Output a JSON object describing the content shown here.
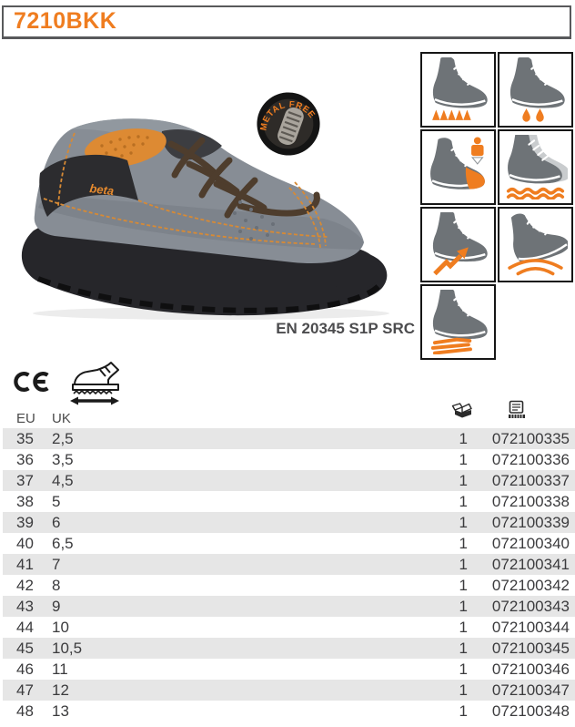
{
  "colors": {
    "accent": "#EF7D20",
    "header_border": "#58595B",
    "boot_gray": "#6E7377",
    "ghost_gray": "#C9CCCE",
    "row_alt": "#E6E6E6",
    "table_text": "#3B3B3D",
    "standard_text": "#4C4C4E"
  },
  "header": {
    "product_code": "7210BKK"
  },
  "product": {
    "badge_label": "METAL FREE",
    "brand_label": "beta",
    "standard_label": "EN 20345 S1P SRC"
  },
  "pictograms": [
    {
      "icon": "boot-spikes"
    },
    {
      "icon": "boot-drops"
    },
    {
      "icon": "boot-toecap"
    },
    {
      "icon": "boot-waves"
    },
    {
      "icon": "boot-lightning"
    },
    {
      "icon": "boot-heel-arc"
    },
    {
      "icon": "boot-slip"
    }
  ],
  "certification": {
    "ce_label": "CE",
    "size_icon": "shoe-width-arrow-icon"
  },
  "size_table": {
    "headers": {
      "eu": "EU",
      "uk": "UK",
      "pack_icon": "package-icon",
      "code_icon": "barcode-label-icon"
    },
    "rows": [
      {
        "eu": "35",
        "uk": "2,5",
        "qty": "1",
        "code": "072100335"
      },
      {
        "eu": "36",
        "uk": "3,5",
        "qty": "1",
        "code": "072100336"
      },
      {
        "eu": "37",
        "uk": "4,5",
        "qty": "1",
        "code": "072100337"
      },
      {
        "eu": "38",
        "uk": "5",
        "qty": "1",
        "code": "072100338"
      },
      {
        "eu": "39",
        "uk": "6",
        "qty": "1",
        "code": "072100339"
      },
      {
        "eu": "40",
        "uk": "6,5",
        "qty": "1",
        "code": "072100340"
      },
      {
        "eu": "41",
        "uk": "7",
        "qty": "1",
        "code": "072100341"
      },
      {
        "eu": "42",
        "uk": "8",
        "qty": "1",
        "code": "072100342"
      },
      {
        "eu": "43",
        "uk": "9",
        "qty": "1",
        "code": "072100343"
      },
      {
        "eu": "44",
        "uk": "10",
        "qty": "1",
        "code": "072100344"
      },
      {
        "eu": "45",
        "uk": "10,5",
        "qty": "1",
        "code": "072100345"
      },
      {
        "eu": "46",
        "uk": "11",
        "qty": "1",
        "code": "072100346"
      },
      {
        "eu": "47",
        "uk": "12",
        "qty": "1",
        "code": "072100347"
      },
      {
        "eu": "48",
        "uk": "13",
        "qty": "1",
        "code": "072100348"
      }
    ]
  }
}
